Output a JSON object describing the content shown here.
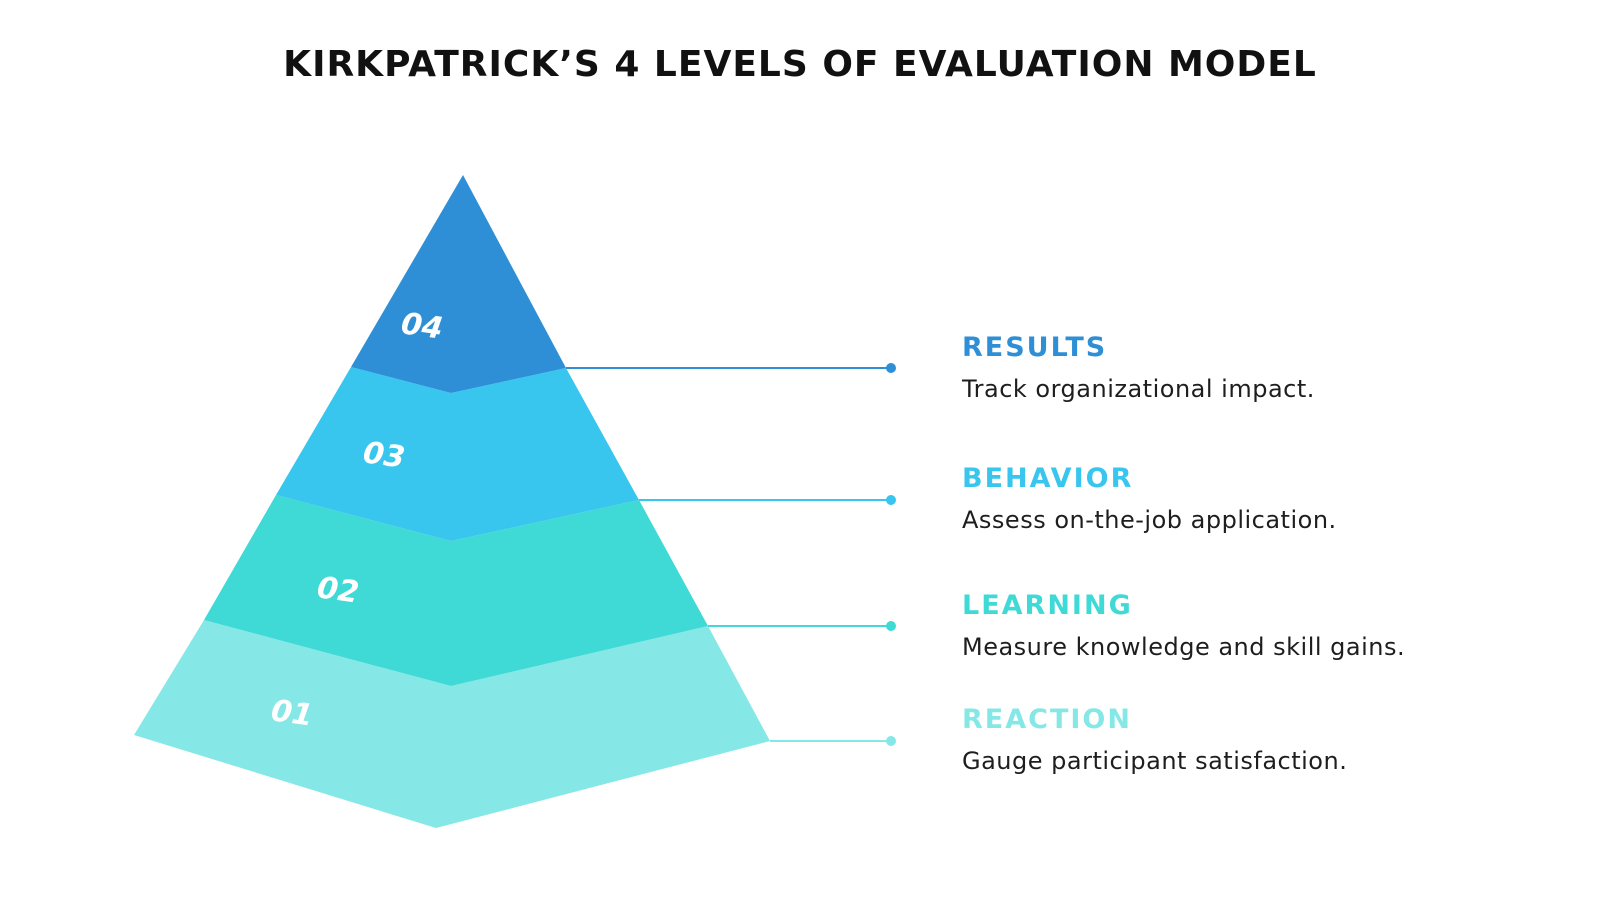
{
  "title": "KIRKPATRICK’S 4 LEVELS OF EVALUATION MODEL",
  "levels": [
    {
      "number": "04",
      "name": "RESULTS",
      "description": "Track organizational impact.",
      "color": "#2e8fd6"
    },
    {
      "number": "03",
      "name": "BEHAVIOR",
      "description": "Assess on-the-job application.",
      "color": "#38c6ee"
    },
    {
      "number": "02",
      "name": "LEARNING",
      "description": "Measure knowledge and skill gains.",
      "color": "#3fd9d6"
    },
    {
      "number": "01",
      "name": "REACTION",
      "description": "Gauge participant satisfaction.",
      "color": "#86e8e6"
    }
  ]
}
